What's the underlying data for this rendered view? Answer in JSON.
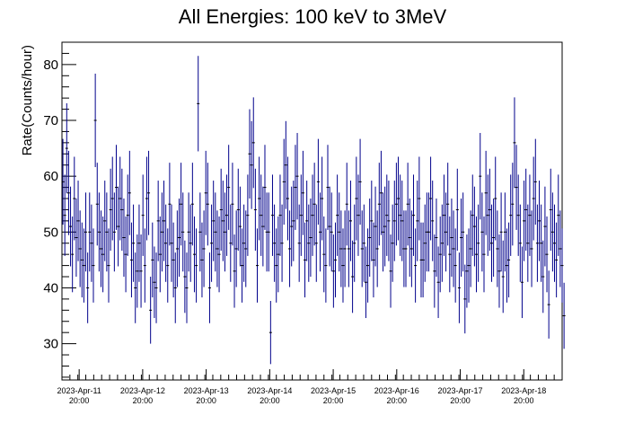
{
  "chart_data": {
    "type": "scatter",
    "title": "All Energies:  100 keV to 3MeV",
    "xlabel": "",
    "ylabel": "Rate(Counts/hour)",
    "ylim": [
      23.5,
      84
    ],
    "y_ticks": [
      30,
      40,
      50,
      60,
      70,
      80
    ],
    "x_tick_labels": [
      [
        "2023-Apr-11",
        "20:00"
      ],
      [
        "2023-Apr-12",
        "20:00"
      ],
      [
        "2023-Apr-13",
        "20:00"
      ],
      [
        "2023-Apr-14",
        "20:00"
      ],
      [
        "2023-Apr-15",
        "20:00"
      ],
      [
        "2023-Apr-16",
        "20:00"
      ],
      [
        "2023-Apr-17",
        "20:00"
      ],
      [
        "2023-Apr-18",
        "20:00"
      ]
    ],
    "x_unit": "hours since first bin",
    "xlim": [
      0,
      189
    ],
    "x_tick_positions": [
      6.5,
      30.5,
      54.5,
      78.5,
      102.5,
      126.5,
      150.5,
      174.5
    ],
    "grid": false,
    "legend": "none",
    "colors": {
      "errorbar": "#00008b",
      "marker": "#000000"
    },
    "series": [
      {
        "rates": [
          59,
          53,
          65,
          57,
          51,
          46,
          56,
          49,
          52,
          47,
          45,
          44,
          50,
          40,
          50,
          48,
          44,
          70,
          55,
          50,
          47,
          46,
          52,
          50,
          44,
          54,
          56,
          50,
          58,
          51,
          56,
          54,
          49,
          46,
          53,
          57,
          45,
          48,
          40,
          43,
          48,
          43,
          53,
          44,
          56,
          57,
          36,
          45,
          41,
          40,
          52,
          46,
          50,
          52,
          48,
          44,
          55,
          48,
          45,
          40,
          47,
          49,
          55,
          50,
          42,
          40,
          50,
          48,
          55,
          46,
          44,
          73,
          50,
          45,
          47,
          57,
          55,
          40,
          48,
          52,
          50,
          47,
          46,
          54,
          52,
          50,
          53,
          58,
          48,
          55,
          43,
          47,
          54,
          51,
          44,
          48,
          47,
          53,
          64,
          62,
          66,
          54,
          44,
          56,
          53,
          51,
          58,
          50,
          50,
          32,
          53,
          48,
          44,
          46,
          53,
          48,
          59,
          62,
          56,
          47,
          51,
          52,
          58,
          60,
          48,
          53,
          57,
          45,
          52,
          48,
          49,
          53,
          55,
          48,
          59,
          50,
          56,
          46,
          44,
          58,
          51,
          50,
          43,
          45,
          53,
          50,
          47,
          44,
          47,
          55,
          47,
          52,
          42,
          48,
          56,
          53,
          59,
          47,
          48,
          41,
          44,
          49,
          52,
          45,
          51,
          47,
          55,
          57,
          50,
          51,
          53,
          52,
          43,
          48,
          52,
          55,
          56,
          53,
          52,
          47,
          47,
          55,
          49,
          47,
          53,
          44,
          52,
          56,
          45,
          45,
          48,
          50,
          50,
          56,
          52,
          43,
          49,
          41,
          46,
          48,
          53,
          50,
          55,
          46,
          49,
          47,
          44,
          54,
          40,
          49,
          50,
          38,
          43,
          44,
          47,
          53,
          51,
          46,
          48,
          60,
          50,
          46,
          57,
          53,
          54,
          48,
          49,
          56,
          47,
          43,
          50,
          42,
          50,
          44,
          45,
          53,
          55,
          66,
          58,
          53,
          48,
          41,
          52,
          54,
          48,
          53,
          47,
          56,
          59,
          48,
          52,
          48,
          42,
          51,
          46,
          37,
          54,
          50,
          48,
          45,
          53,
          47,
          44,
          35
        ],
        "bin_width_hours": 0.72
      }
    ]
  }
}
